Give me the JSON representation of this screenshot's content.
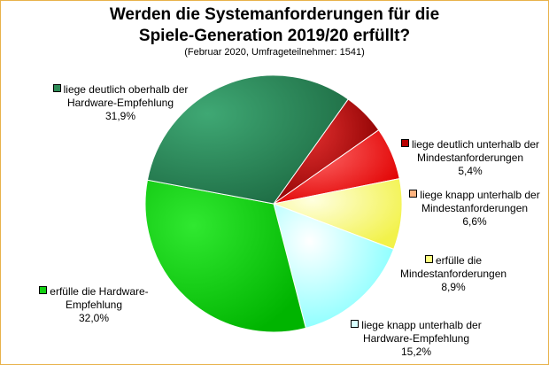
{
  "chart_data": {
    "type": "pie",
    "title_line1": "Werden die Systemanforderungen für die",
    "title_line2": "Spiele-Generation 2019/20 erfüllt?",
    "subtitle": "(Februar 2020, Umfrageteilnehmer: 1541)",
    "slices": [
      {
        "label_line1": "liege deutlich unterhalb der",
        "label_line2": "Mindestanforderungen",
        "value_text": "5,4%",
        "value": 5.4,
        "color": "#b80000"
      },
      {
        "label_line1": "liege knapp unterhalb der",
        "label_line2": "Mindestanforderungen",
        "value_text": "6,6%",
        "value": 6.6,
        "color": "#ff1a1a"
      },
      {
        "label_line1": "erfülle die",
        "label_line2": "Mindestanforderungen",
        "value_text": "8,9%",
        "value": 8.9,
        "color": "#ffff80"
      },
      {
        "label_line1": "liege knapp unterhalb der",
        "label_line2": "Hardware-Empfehlung",
        "value_text": "15,2%",
        "value": 15.2,
        "color": "#a8ffff"
      },
      {
        "label_line1": "erfülle die Hardware-",
        "label_line2": "Empfehlung",
        "value_text": "32,0%",
        "value": 32.0,
        "color": "#14d014"
      },
      {
        "label_line1": "liege deutlich oberhalb der",
        "label_line2": "Hardware-Empfehlung",
        "value_text": "31,9%",
        "value": 31.9,
        "color": "#2e8b57"
      }
    ]
  }
}
